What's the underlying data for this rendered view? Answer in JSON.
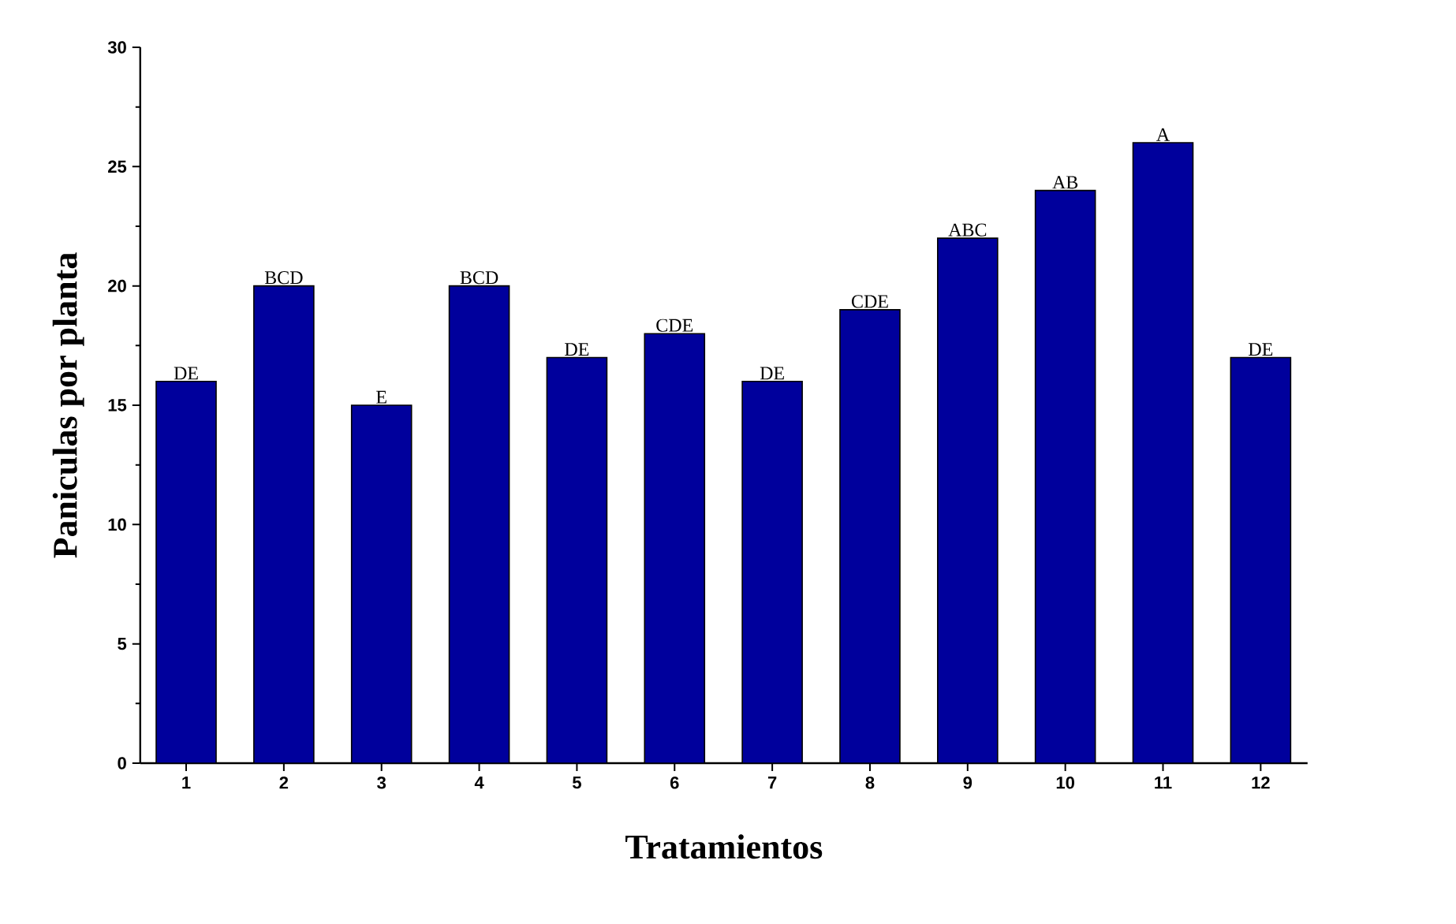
{
  "chart_data": {
    "type": "bar",
    "xlabel": "Tratamientos",
    "ylabel": "Paniculas por planta",
    "categories": [
      "1",
      "2",
      "3",
      "4",
      "5",
      "6",
      "7",
      "8",
      "9",
      "10",
      "11",
      "12"
    ],
    "values": [
      16,
      20,
      15,
      20,
      17,
      18,
      16,
      19,
      22,
      24,
      26,
      17
    ],
    "color": "#00009c",
    "ylim": [
      0,
      30
    ],
    "yticks": [
      0,
      5,
      10,
      15,
      20,
      25,
      30
    ],
    "annotations": [
      {
        "text": "DE",
        "x": "1",
        "y": 16
      },
      {
        "text": "BCD",
        "x": "2",
        "y": 20
      },
      {
        "text": "E",
        "x": "3",
        "y": 15
      },
      {
        "text": "BCD",
        "x": "4",
        "y": 20
      },
      {
        "text": "DE",
        "x": "5",
        "y": 17
      },
      {
        "text": "CDE",
        "x": "6",
        "y": 18
      },
      {
        "text": "DE",
        "x": "7",
        "y": 16
      },
      {
        "text": "CDE",
        "x": "8",
        "y": 19
      },
      {
        "text": "ABC",
        "x": "9",
        "y": 22
      },
      {
        "text": "AB",
        "x": "10",
        "y": 24
      },
      {
        "text": "A",
        "x": "11",
        "y": 26
      },
      {
        "text": "DE",
        "x": "12",
        "y": 17
      }
    ]
  }
}
